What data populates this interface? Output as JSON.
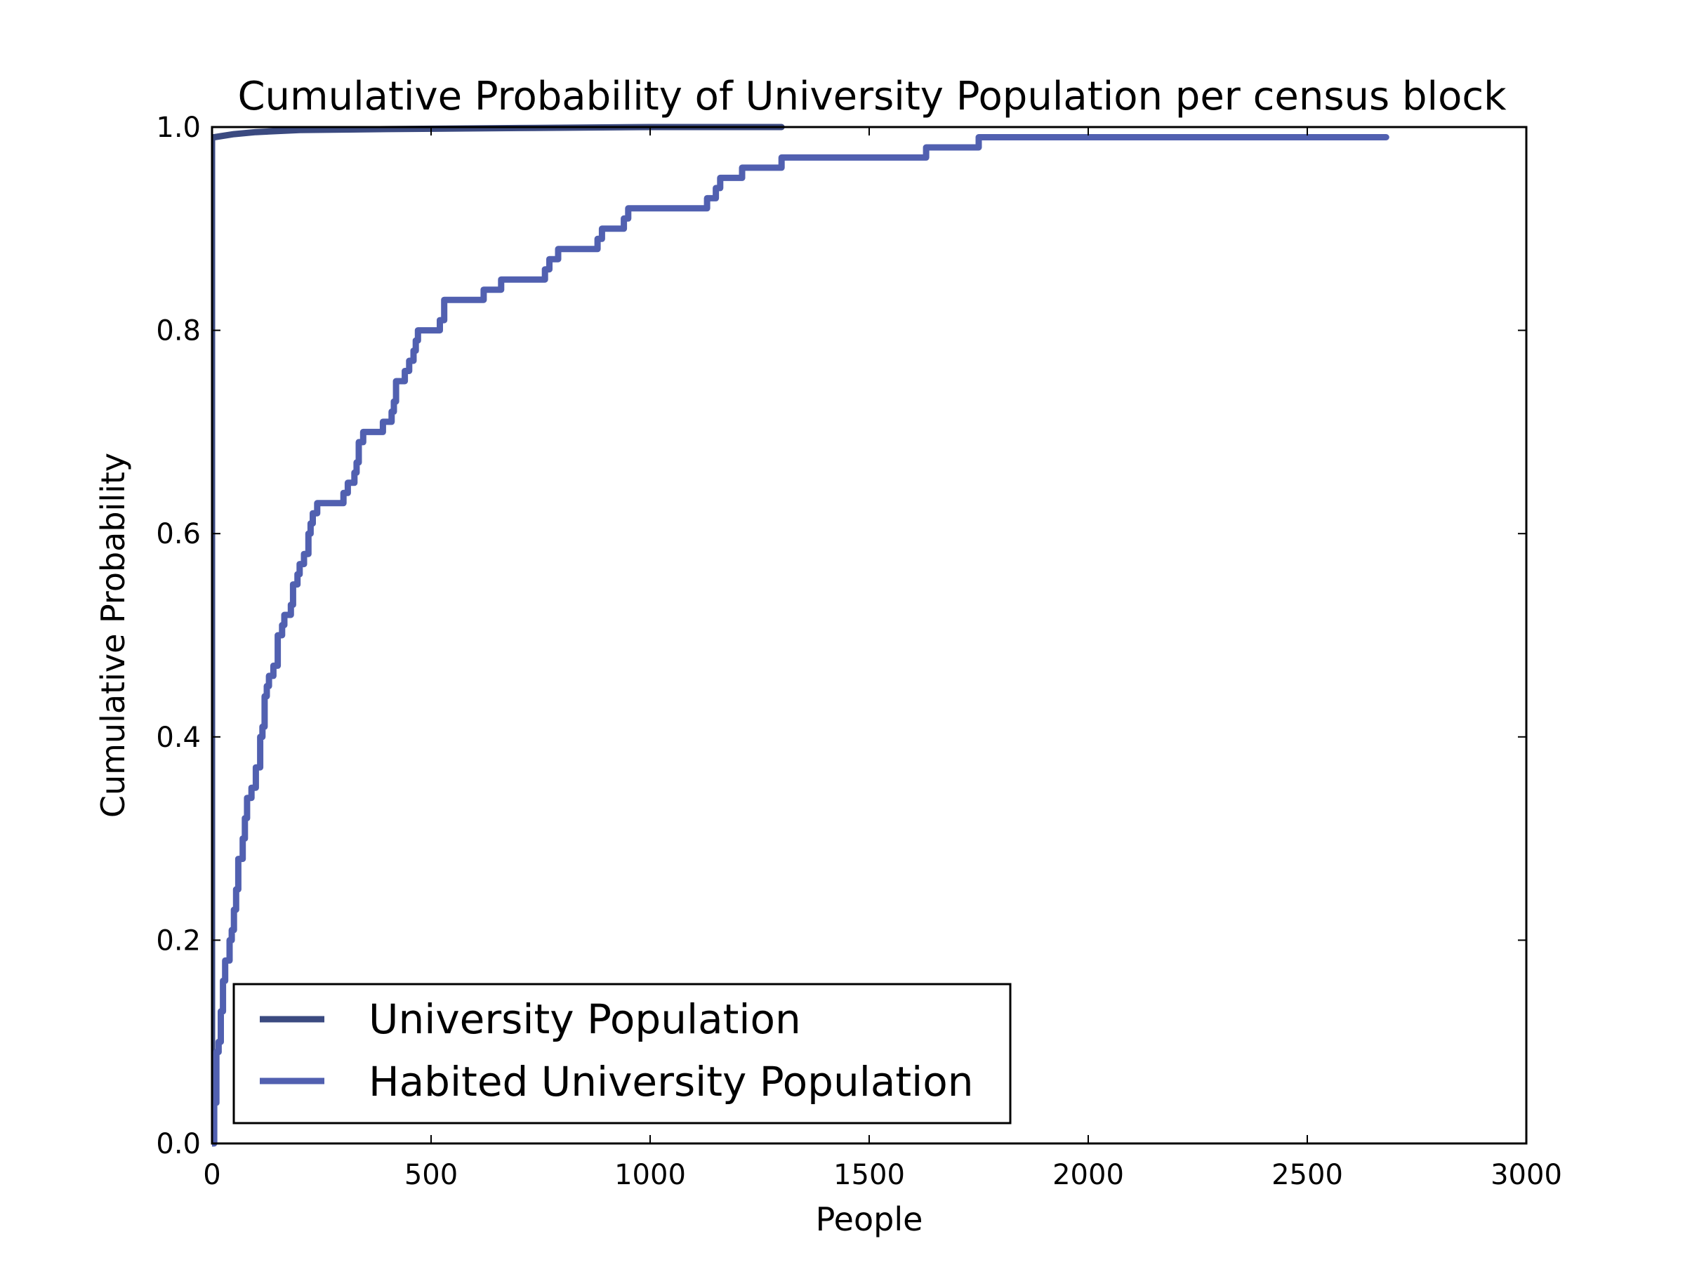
{
  "chart_data": {
    "type": "line",
    "title": "Cumulative Probability of University Population per census block",
    "xlabel": "People",
    "ylabel": "Cumulative Probability",
    "xlim": [
      0,
      3000
    ],
    "ylim": [
      0.0,
      1.0
    ],
    "xticks": [
      0,
      500,
      1000,
      1500,
      2000,
      2500,
      3000
    ],
    "xtick_labels": [
      "0",
      "500",
      "1000",
      "1500",
      "2000",
      "2500",
      "3000"
    ],
    "yticks": [
      0.0,
      0.2,
      0.4,
      0.6,
      0.8,
      1.0
    ],
    "ytick_labels": [
      "0.0",
      "0.2",
      "0.4",
      "0.6",
      "0.8",
      "1.0"
    ],
    "grid": false,
    "legend_position": "lower-left",
    "series": [
      {
        "name": "University Population",
        "color": "#3b4a80",
        "step": false,
        "x": [
          0,
          0,
          0,
          5,
          20,
          50,
          100,
          200,
          400,
          700,
          1000,
          1300
        ],
        "y": [
          0.0,
          0.98,
          0.99,
          0.99,
          0.991,
          0.993,
          0.995,
          0.997,
          0.998,
          0.999,
          1.0,
          1.0
        ]
      },
      {
        "name": "Habited University Population",
        "color": "#5160b0",
        "step": true,
        "x": [
          0,
          5,
          10,
          15,
          20,
          25,
          30,
          40,
          45,
          50,
          55,
          60,
          70,
          75,
          80,
          90,
          100,
          110,
          115,
          120,
          125,
          130,
          140,
          150,
          160,
          165,
          180,
          185,
          195,
          200,
          210,
          220,
          225,
          230,
          240,
          260,
          300,
          310,
          325,
          330,
          335,
          345,
          375,
          390,
          410,
          415,
          420,
          440,
          450,
          460,
          465,
          470,
          520,
          530,
          620,
          660,
          750,
          760,
          770,
          790,
          870,
          880,
          890,
          940,
          950,
          1130,
          1150,
          1160,
          1170,
          1200,
          1210,
          1290,
          1300,
          1620,
          1630,
          1740,
          1750,
          2670,
          2680
        ],
        "y": [
          0.0,
          0.04,
          0.09,
          0.1,
          0.13,
          0.16,
          0.18,
          0.2,
          0.21,
          0.23,
          0.25,
          0.28,
          0.3,
          0.32,
          0.34,
          0.35,
          0.37,
          0.4,
          0.41,
          0.44,
          0.45,
          0.46,
          0.47,
          0.5,
          0.51,
          0.52,
          0.53,
          0.55,
          0.56,
          0.57,
          0.58,
          0.6,
          0.61,
          0.62,
          0.63,
          0.63,
          0.64,
          0.65,
          0.66,
          0.67,
          0.69,
          0.7,
          0.7,
          0.71,
          0.72,
          0.73,
          0.75,
          0.76,
          0.77,
          0.78,
          0.79,
          0.8,
          0.81,
          0.83,
          0.84,
          0.85,
          0.85,
          0.86,
          0.87,
          0.88,
          0.88,
          0.89,
          0.9,
          0.91,
          0.92,
          0.93,
          0.94,
          0.95,
          0.95,
          0.95,
          0.96,
          0.96,
          0.97,
          0.97,
          0.98,
          0.98,
          0.99,
          0.99,
          0.99
        ]
      }
    ]
  }
}
